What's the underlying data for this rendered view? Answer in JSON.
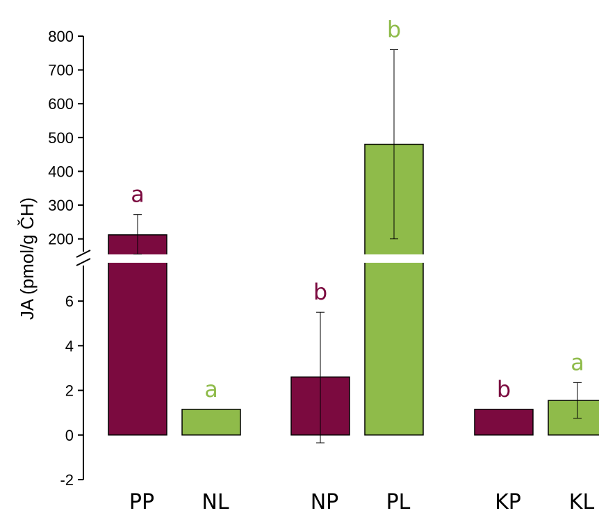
{
  "chart_data": {
    "type": "bar",
    "ylabel": "JA (pmol/g ČH)",
    "categories": [
      "PP",
      "NL",
      "NP",
      "PL",
      "KP",
      "KL"
    ],
    "values": [
      212,
      1.15,
      2.6,
      480,
      1.15,
      1.55
    ],
    "error_low": [
      155,
      null,
      -0.35,
      200,
      null,
      0.75
    ],
    "error_high": [
      272,
      null,
      5.5,
      760,
      null,
      2.35
    ],
    "significance": [
      "a",
      "a",
      "b",
      "b",
      "b",
      "a"
    ],
    "series_colors": [
      "#7b0a3f",
      "#8fbb4a",
      "#7b0a3f",
      "#8fbb4a",
      "#7b0a3f",
      "#8fbb4a"
    ],
    "y_axis_broken": true,
    "y_lower_ticks": [
      "-2",
      "0",
      "2",
      "4",
      "6"
    ],
    "y_upper_ticks": [
      "200",
      "300",
      "400",
      "500",
      "600",
      "700",
      "800"
    ],
    "ylim_lower": [
      -2,
      7.5
    ],
    "ylim_upper": [
      150,
      800
    ]
  }
}
